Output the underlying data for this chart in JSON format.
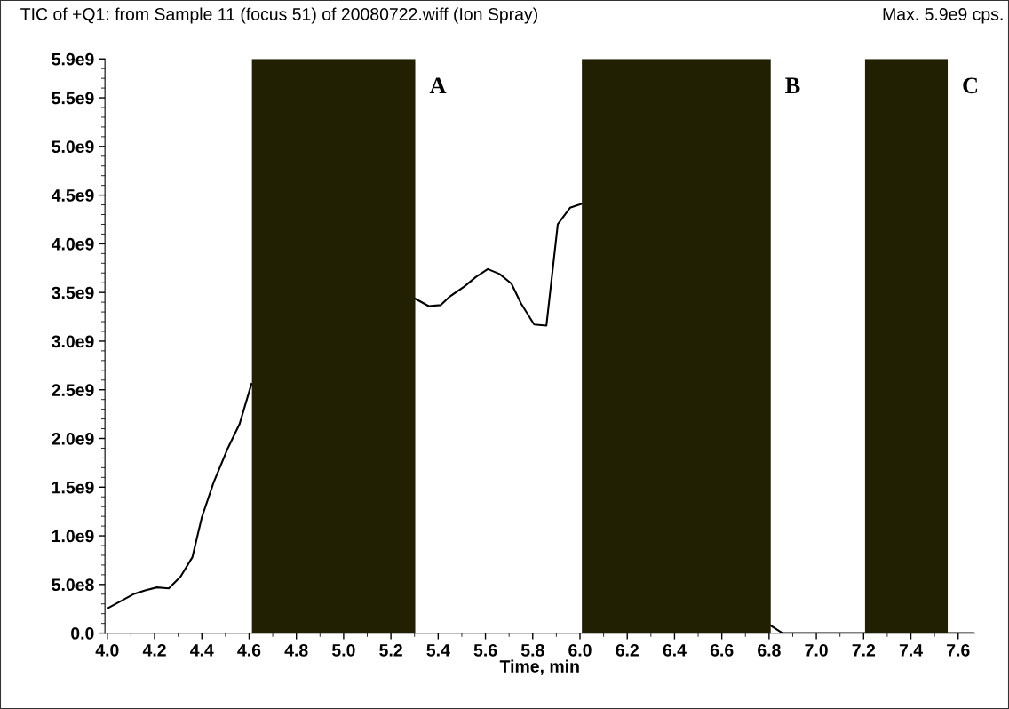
{
  "chart_data": {
    "type": "line",
    "title": "TIC of +Q1: from Sample 11 (focus 51) of 20080722.wiff (Ion Spray)",
    "annotations": [
      "Max. 5.9e9 cps."
    ],
    "xlabel": "Time, min",
    "series": [
      {
        "color": "#000000",
        "x": [
          4.005,
          4.05,
          4.11,
          4.16,
          4.21,
          4.26,
          4.31,
          4.36,
          4.4,
          4.45,
          4.51,
          4.56,
          4.61,
          5.0,
          5.3,
          5.36,
          5.41,
          5.45,
          5.51,
          5.56,
          5.61,
          5.66,
          5.71,
          5.75,
          5.806,
          5.858,
          5.906,
          5.958,
          6.006,
          6.4,
          6.806,
          6.857,
          7.203,
          7.4,
          7.556,
          7.664
        ],
        "values": [
          260000000.0,
          320000000.0,
          400000000.0,
          440000000.0,
          470000000.0,
          460000000.0,
          580000000.0,
          780000000.0,
          1190000000.0,
          1550000000.0,
          1900000000.0,
          2150000000.0,
          2560000000.0,
          null,
          3440000000.0,
          3360000000.0,
          3370000000.0,
          3460000000.0,
          3560000000.0,
          3660000000.0,
          3740000000.0,
          3690000000.0,
          3590000000.0,
          3390000000.0,
          3170000000.0,
          3160000000.0,
          4200000000.0,
          4370000000.0,
          4410000000.0,
          null,
          80000000.0,
          0,
          0,
          null,
          0,
          0
        ]
      }
    ],
    "bands": [
      {
        "axis": "x",
        "from": 4.612,
        "to": 5.303,
        "label": "A",
        "color": "#212002"
      },
      {
        "axis": "x",
        "from": 6.008,
        "to": 6.807,
        "label": "B",
        "color": "#212002"
      },
      {
        "axis": "x",
        "from": 7.206,
        "to": 7.556,
        "label": "C",
        "color": "#212002"
      }
    ],
    "xlim": [
      3.99,
      7.67
    ],
    "ylim": [
      0,
      5900000000.0
    ],
    "xticks": [
      {
        "value": 4,
        "label": "4.0"
      },
      4.2,
      4.4,
      4.6,
      4.8,
      {
        "value": 5,
        "label": "5.0"
      },
      5.2,
      5.4,
      5.6,
      5.8,
      {
        "value": 6,
        "label": "6.0"
      },
      6.2,
      6.4,
      6.6,
      6.8,
      {
        "value": 7,
        "label": "7.0"
      },
      7.2,
      7.4,
      7.6
    ],
    "yticks": [
      {
        "value": 0,
        "label": "0.0"
      },
      {
        "value": 500000000.0,
        "label": "5.0e8"
      },
      {
        "value": 1000000000.0,
        "label": "1.0e9"
      },
      {
        "value": 1500000000.0,
        "label": "1.5e9"
      },
      {
        "value": 2000000000.0,
        "label": "2.0e9"
      },
      {
        "value": 2500000000.0,
        "label": "2.5e9"
      },
      {
        "value": 3000000000.0,
        "label": "3.0e9"
      },
      {
        "value": 3500000000.0,
        "label": "3.5e9"
      },
      {
        "value": 4000000000.0,
        "label": "4.0e9"
      },
      {
        "value": 4500000000.0,
        "label": "4.5e9"
      },
      {
        "value": 5000000000.0,
        "label": "5.0e9"
      },
      {
        "value": 5500000000.0,
        "label": "5.5e9"
      },
      {
        "value": 5900000000.0,
        "label": "5.9e9"
      }
    ],
    "grid": false
  }
}
